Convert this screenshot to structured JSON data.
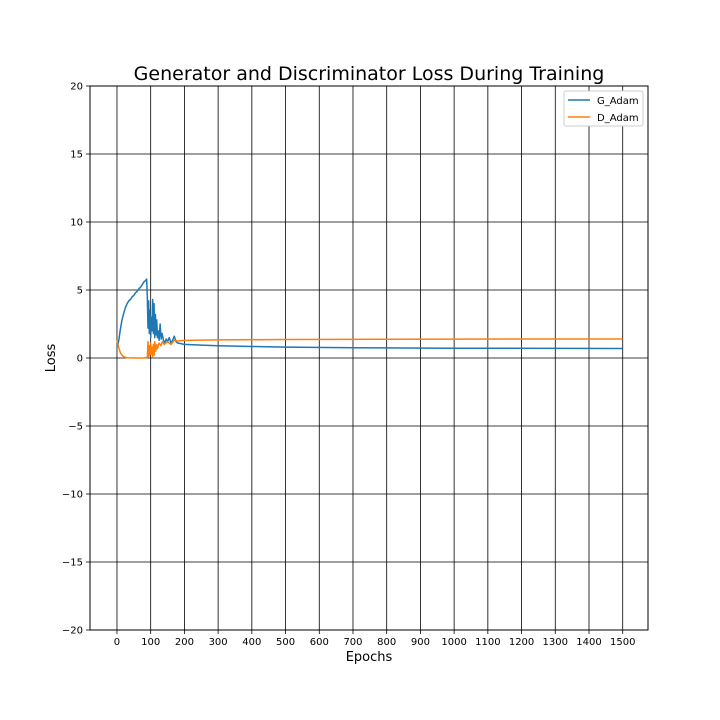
{
  "chart_data": {
    "type": "line",
    "title": "Generator and Discriminator Loss During Training",
    "xlabel": "Epochs",
    "ylabel": "Loss",
    "xlim": [
      -80,
      1575
    ],
    "ylim": [
      -20,
      20
    ],
    "xticks": [
      0,
      100,
      200,
      300,
      400,
      500,
      600,
      700,
      800,
      900,
      1000,
      1100,
      1200,
      1300,
      1400,
      1500
    ],
    "yticks": [
      -20,
      -15,
      -10,
      -5,
      0,
      5,
      10,
      15,
      20
    ],
    "ytick_labels": [
      "−20",
      "−15",
      "−10",
      "−5",
      "0",
      "5",
      "10",
      "15",
      "20"
    ],
    "grid": true,
    "legend_position": "top-right",
    "series": [
      {
        "name": "G_Adam",
        "color": "#1f77b4",
        "points": [
          [
            0,
            0.8
          ],
          [
            3,
            1.0
          ],
          [
            6,
            1.4
          ],
          [
            10,
            2.1
          ],
          [
            15,
            2.8
          ],
          [
            20,
            3.3
          ],
          [
            25,
            3.7
          ],
          [
            30,
            4.0
          ],
          [
            35,
            4.2
          ],
          [
            40,
            4.3
          ],
          [
            45,
            4.5
          ],
          [
            50,
            4.6
          ],
          [
            55,
            4.8
          ],
          [
            60,
            4.9
          ],
          [
            65,
            5.1
          ],
          [
            70,
            5.2
          ],
          [
            75,
            5.4
          ],
          [
            80,
            5.6
          ],
          [
            85,
            5.7
          ],
          [
            88,
            5.8
          ],
          [
            90,
            4.5
          ],
          [
            92,
            2.2
          ],
          [
            94,
            4.2
          ],
          [
            96,
            1.8
          ],
          [
            98,
            3.5
          ],
          [
            100,
            1.5
          ],
          [
            102,
            3.0
          ],
          [
            104,
            2.0
          ],
          [
            106,
            4.3
          ],
          [
            108,
            1.8
          ],
          [
            110,
            4.0
          ],
          [
            112,
            1.5
          ],
          [
            114,
            3.2
          ],
          [
            116,
            1.7
          ],
          [
            118,
            2.8
          ],
          [
            120,
            1.5
          ],
          [
            122,
            2.0
          ],
          [
            125,
            1.3
          ],
          [
            128,
            2.5
          ],
          [
            131,
            1.4
          ],
          [
            134,
            1.8
          ],
          [
            138,
            1.3
          ],
          [
            142,
            1.1
          ],
          [
            146,
            1.4
          ],
          [
            150,
            1.2
          ],
          [
            155,
            1.5
          ],
          [
            160,
            1.1
          ],
          [
            165,
            1.3
          ],
          [
            170,
            1.6
          ],
          [
            175,
            1.2
          ],
          [
            180,
            1.1
          ],
          [
            200,
            1.0
          ],
          [
            250,
            0.95
          ],
          [
            300,
            0.9
          ],
          [
            400,
            0.85
          ],
          [
            500,
            0.8
          ],
          [
            700,
            0.75
          ],
          [
            1000,
            0.72
          ],
          [
            1500,
            0.7
          ]
        ]
      },
      {
        "name": "D_Adam",
        "color": "#ff7f0e",
        "points": [
          [
            0,
            1.3
          ],
          [
            3,
            1.0
          ],
          [
            6,
            0.7
          ],
          [
            10,
            0.4
          ],
          [
            15,
            0.2
          ],
          [
            20,
            0.1
          ],
          [
            25,
            0.05
          ],
          [
            30,
            0.02
          ],
          [
            40,
            0.01
          ],
          [
            60,
            0.0
          ],
          [
            80,
            0.0
          ],
          [
            90,
            0.05
          ],
          [
            92,
            1.2
          ],
          [
            94,
            0.1
          ],
          [
            96,
            0.9
          ],
          [
            98,
            0.2
          ],
          [
            100,
            1.1
          ],
          [
            102,
            0.3
          ],
          [
            104,
            0.8
          ],
          [
            106,
            0.05
          ],
          [
            108,
            1.0
          ],
          [
            110,
            0.2
          ],
          [
            112,
            1.2
          ],
          [
            115,
            0.5
          ],
          [
            118,
            1.0
          ],
          [
            120,
            0.7
          ],
          [
            125,
            1.1
          ],
          [
            130,
            0.9
          ],
          [
            135,
            1.2
          ],
          [
            140,
            1.0
          ],
          [
            150,
            1.2
          ],
          [
            160,
            1.0
          ],
          [
            170,
            1.3
          ],
          [
            180,
            1.25
          ],
          [
            200,
            1.3
          ],
          [
            300,
            1.33
          ],
          [
            500,
            1.36
          ],
          [
            800,
            1.38
          ],
          [
            1000,
            1.39
          ],
          [
            1500,
            1.4
          ]
        ]
      }
    ]
  }
}
